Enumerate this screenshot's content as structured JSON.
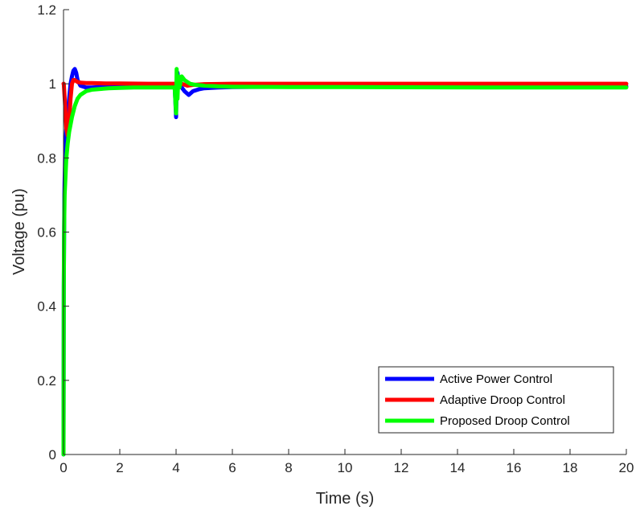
{
  "chart_data": {
    "type": "line",
    "xlabel": "Time (s)",
    "ylabel": "Voltage (pu)",
    "xlim": [
      0,
      20
    ],
    "ylim": [
      0,
      1.2
    ],
    "xticks": [
      0,
      2,
      4,
      6,
      8,
      10,
      12,
      14,
      16,
      18,
      20
    ],
    "yticks": [
      0,
      0.2,
      0.4,
      0.6,
      0.8,
      1,
      1.2
    ],
    "xtick_labels": [
      "0",
      "2",
      "4",
      "6",
      "8",
      "10",
      "12",
      "14",
      "16",
      "18",
      "20"
    ],
    "ytick_labels": [
      "0",
      "0.2",
      "0.4",
      "0.6",
      "0.8",
      "1",
      "1.2"
    ],
    "grid": false,
    "legend_position": "bottom-right",
    "series": [
      {
        "name": "Active Power Control",
        "color": "#0000ff",
        "x": [
          0,
          0.01,
          0.03,
          0.06,
          0.1,
          0.15,
          0.2,
          0.25,
          0.3,
          0.35,
          0.4,
          0.45,
          0.5,
          0.6,
          0.8,
          1.0,
          1.5,
          2.0,
          3.0,
          3.95,
          4.0,
          4.02,
          4.05,
          4.1,
          4.2,
          4.3,
          4.45,
          4.6,
          4.8,
          5.0,
          5.5,
          6,
          8,
          10,
          15,
          20
        ],
        "y": [
          0,
          0.45,
          0.7,
          0.82,
          0.88,
          0.92,
          0.96,
          1.0,
          1.02,
          1.035,
          1.04,
          1.03,
          1.01,
          0.995,
          0.99,
          0.99,
          0.992,
          0.993,
          0.994,
          0.994,
          0.91,
          1.0,
          1.03,
          1.0,
          0.99,
          0.98,
          0.97,
          0.98,
          0.985,
          0.988,
          0.99,
          0.991,
          0.992,
          0.993,
          0.993,
          0.993
        ]
      },
      {
        "name": "Adaptive Droop Control",
        "color": "#ff0000",
        "x": [
          0,
          0.01,
          0.05,
          0.1,
          0.15,
          0.2,
          0.25,
          0.3,
          0.35,
          0.4,
          0.5,
          0.6,
          0.8,
          1.0,
          1.5,
          2.0,
          3.0,
          3.95,
          4.0,
          4.05,
          4.1,
          4.2,
          4.4,
          4.6,
          5.0,
          6,
          8,
          10,
          15,
          20
        ],
        "y": [
          1.0,
          1.0,
          0.95,
          0.88,
          0.86,
          0.9,
          0.96,
          1.0,
          1.01,
          1.01,
          1.005,
          1.003,
          1.002,
          1.002,
          1.001,
          1.001,
          1.0,
          1.0,
          0.98,
          1.02,
          1.01,
          1.0,
          0.995,
          0.997,
          0.999,
          1.0,
          1.0,
          1.0,
          1.0,
          1.0
        ]
      },
      {
        "name": "Proposed Droop Control",
        "color": "#00ff00",
        "x": [
          0,
          0.005,
          0.01,
          0.02,
          0.04,
          0.07,
          0.1,
          0.15,
          0.2,
          0.3,
          0.4,
          0.5,
          0.6,
          0.8,
          1.0,
          1.3,
          1.6,
          2.0,
          2.5,
          3.0,
          3.5,
          3.95,
          4.0,
          4.02,
          4.05,
          4.08,
          4.12,
          4.2,
          4.3,
          4.5,
          4.7,
          5.0,
          5.5,
          6,
          8,
          10,
          15,
          20
        ],
        "y": [
          0,
          0.2,
          0.45,
          0.6,
          0.7,
          0.75,
          0.8,
          0.84,
          0.87,
          0.91,
          0.94,
          0.96,
          0.97,
          0.98,
          0.984,
          0.986,
          0.988,
          0.989,
          0.99,
          0.99,
          0.99,
          0.99,
          0.92,
          1.04,
          0.96,
          1.02,
          0.99,
          1.02,
          1.01,
          1.0,
          0.997,
          0.995,
          0.993,
          0.992,
          0.991,
          0.991,
          0.99,
          0.99
        ]
      }
    ]
  }
}
